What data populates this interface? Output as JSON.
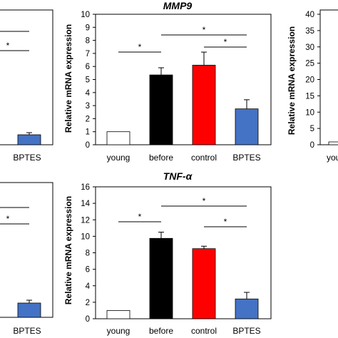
{
  "colors": {
    "young": "#ffffff",
    "before": "#000000",
    "control": "#ff0000",
    "BPTES": "#4472c4"
  },
  "chart_data": [
    {
      "id": "mmp9",
      "type": "bar",
      "title": "MMP9",
      "ylabel": "Relative mRNA expression",
      "xlabel": "",
      "categories": [
        "young",
        "before",
        "control",
        "BPTES"
      ],
      "values": [
        1.0,
        5.35,
        6.1,
        2.75
      ],
      "errors": [
        0.0,
        0.55,
        1.0,
        0.7
      ],
      "ylim": [
        0,
        10
      ],
      "yticks": [
        0,
        1,
        2,
        3,
        4,
        5,
        6,
        7,
        8,
        9,
        10
      ],
      "significance": [
        {
          "from": 0,
          "to": 1,
          "label": "*"
        },
        {
          "from": 1,
          "to": 3,
          "label": "*"
        },
        {
          "from": 2,
          "to": 3,
          "label": "*"
        }
      ]
    },
    {
      "id": "tnfa",
      "type": "bar",
      "title": "TNF-α",
      "ylabel": "Relative mRNA expression",
      "xlabel": "",
      "categories": [
        "young",
        "before",
        "control",
        "BPTES"
      ],
      "values": [
        1.0,
        9.75,
        8.5,
        2.4
      ],
      "errors": [
        0.0,
        0.75,
        0.3,
        0.8
      ],
      "ylim": [
        0,
        16
      ],
      "yticks": [
        0,
        2,
        4,
        6,
        8,
        10,
        12,
        14,
        16
      ],
      "significance": [
        {
          "from": 0,
          "to": 1,
          "label": "*"
        },
        {
          "from": 1,
          "to": 3,
          "label": "*"
        },
        {
          "from": 2,
          "to": 3,
          "label": "*"
        }
      ]
    },
    {
      "id": "partial-left-top",
      "type": "bar",
      "categories": [
        "BPTES"
      ],
      "values_visible": "partial"
    },
    {
      "id": "partial-left-bottom",
      "type": "bar",
      "categories": [
        "BPTES"
      ],
      "values_visible": "partial"
    },
    {
      "id": "partial-right-top",
      "type": "bar",
      "ylabel": "Relative mRNA expression",
      "yticks": [
        0,
        5,
        10,
        15,
        20,
        25,
        30,
        35,
        40
      ],
      "ylim": [
        0,
        40
      ],
      "categories": [
        "young"
      ],
      "values_visible": "partial"
    }
  ]
}
